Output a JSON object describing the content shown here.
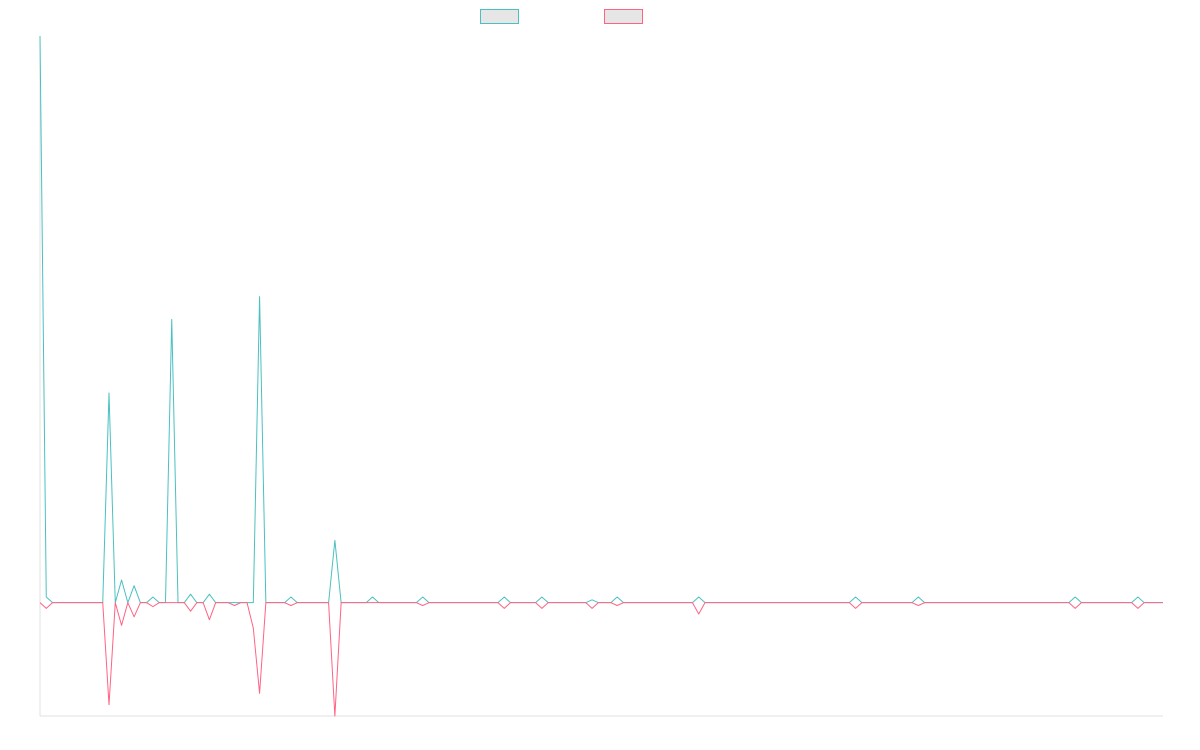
{
  "chart_data": {
    "type": "line",
    "title": "",
    "xlabel": "",
    "ylabel": "",
    "grid": false,
    "legend_placement": "top-center",
    "n_points": 180,
    "series": [
      {
        "name": "",
        "color": "#4bc0c0",
        "fill": "none",
        "points": [
          [
            0,
            100
          ],
          [
            1,
            1
          ],
          [
            11,
            37
          ],
          [
            13,
            4
          ],
          [
            15,
            3
          ],
          [
            18,
            1
          ],
          [
            21,
            50
          ],
          [
            24,
            1.5
          ],
          [
            27,
            1.5
          ],
          [
            35,
            54
          ],
          [
            40,
            1
          ],
          [
            47,
            11
          ],
          [
            53,
            1
          ],
          [
            61,
            1
          ],
          [
            74,
            1
          ],
          [
            80,
            1
          ],
          [
            88,
            0.5
          ],
          [
            92,
            1
          ],
          [
            105,
            1
          ],
          [
            130,
            1
          ],
          [
            140,
            1
          ],
          [
            165,
            1
          ],
          [
            175,
            1
          ]
        ]
      },
      {
        "name": "",
        "color": "#ff6384",
        "fill": "none",
        "points": [
          [
            1,
            -1
          ],
          [
            11,
            -18
          ],
          [
            13,
            -4
          ],
          [
            15,
            -2.5
          ],
          [
            18,
            -0.7
          ],
          [
            24,
            -1.5
          ],
          [
            27,
            -3
          ],
          [
            31,
            -0.5
          ],
          [
            34,
            -4.5
          ],
          [
            35,
            -16
          ],
          [
            40,
            -0.5
          ],
          [
            47,
            -20
          ],
          [
            61,
            -0.5
          ],
          [
            74,
            -1
          ],
          [
            80,
            -1
          ],
          [
            88,
            -1
          ],
          [
            92,
            -0.5
          ],
          [
            105,
            -2
          ],
          [
            130,
            -1
          ],
          [
            140,
            -0.5
          ],
          [
            165,
            -1
          ],
          [
            175,
            -1
          ]
        ]
      }
    ],
    "ylim": [
      -20,
      100
    ]
  }
}
